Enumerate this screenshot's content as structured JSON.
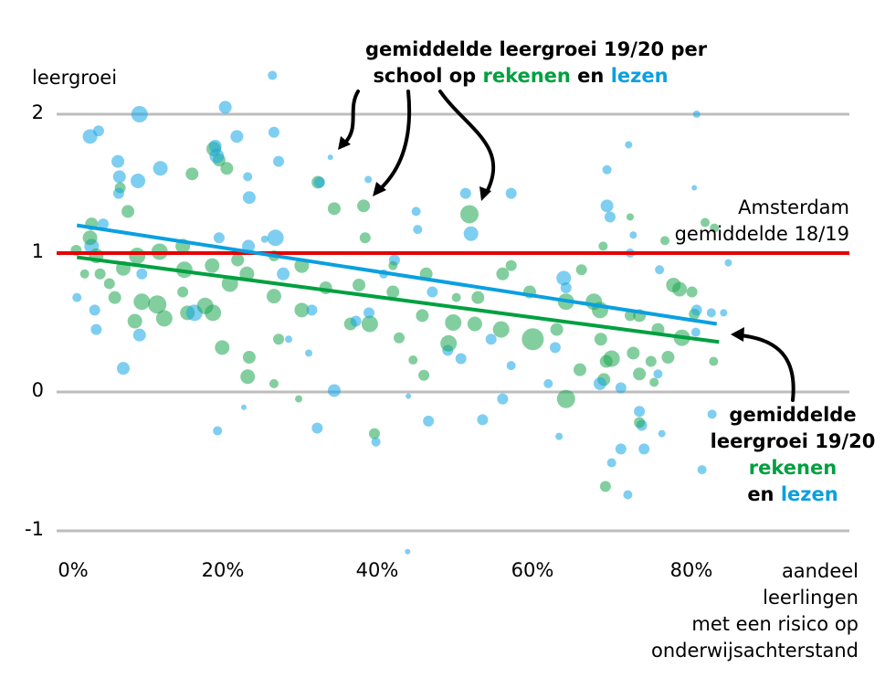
{
  "chart_data": {
    "type": "scatter",
    "ylabel": "leergroei",
    "xlabel": [
      "aandeel",
      "leerlingen",
      "met een risico op",
      "onderwijsachterstand"
    ],
    "xlim": [
      -2,
      101
    ],
    "ylim": [
      -1.2,
      2.3
    ],
    "x_ticks": [
      0,
      20,
      40,
      60,
      80
    ],
    "x_tick_labels": [
      "0%",
      "20%",
      "40%",
      "60%",
      "80%"
    ],
    "y_ticks": [
      2,
      1,
      0,
      -1
    ],
    "y_tick_labels": [
      "2",
      "1",
      "0",
      "-1"
    ],
    "grid": "horizontal",
    "colors": {
      "rekenen": "#00a040",
      "lezen": "#0aa0e0",
      "reference": "#e60000",
      "grid": "#bdbdbd"
    },
    "reference_line": {
      "y": 1,
      "label": [
        "Amsterdam",
        "gemiddelde 18/19"
      ]
    },
    "trend_lines": {
      "lezen": [
        [
          0.5,
          1.2
        ],
        [
          83.3,
          0.49
        ]
      ],
      "rekenen": [
        [
          0.5,
          0.97
        ],
        [
          83.6,
          0.36
        ]
      ]
    },
    "annotations": {
      "top": {
        "line1": "gemiddelde leergroei 19/20 per",
        "line2a": "school op ",
        "line2b": "rekenen",
        "line2c": " en ",
        "line2d": "lezen"
      },
      "right": {
        "line1": "gemiddelde",
        "line2": "leergroei 19/20",
        "line3": "rekenen",
        "line4a": "en ",
        "line4b": "lezen"
      }
    },
    "series": [
      {
        "key": "lezen",
        "points": [
          [
            25.8,
            2.28,
            5
          ],
          [
            19.7,
            2.05,
            7
          ],
          [
            8.6,
            2.0,
            9
          ],
          [
            2.2,
            1.84,
            8
          ],
          [
            3.3,
            1.88,
            6
          ],
          [
            21.2,
            1.84,
            7
          ],
          [
            26.0,
            1.87,
            6
          ],
          [
            33.3,
            1.69,
            3
          ],
          [
            71.9,
            1.78,
            4
          ],
          [
            80.7,
            2.0,
            4
          ],
          [
            5.8,
            1.66,
            7
          ],
          [
            6.0,
            1.55,
            7
          ],
          [
            5.9,
            1.43,
            6
          ],
          [
            8.4,
            1.52,
            8
          ],
          [
            11.3,
            1.61,
            8
          ],
          [
            18.6,
            1.7,
            8
          ],
          [
            18.4,
            1.77,
            7
          ],
          [
            22.6,
            1.55,
            5
          ],
          [
            22.8,
            1.4,
            7
          ],
          [
            26.6,
            1.66,
            6
          ],
          [
            31.9,
            1.51,
            6
          ],
          [
            38.2,
            1.53,
            4
          ],
          [
            44.4,
            1.3,
            5
          ],
          [
            44.6,
            1.17,
            5
          ],
          [
            50.8,
            1.43,
            6
          ],
          [
            51.5,
            1.14,
            8
          ],
          [
            56.7,
            1.43,
            6
          ],
          [
            69.1,
            1.6,
            5
          ],
          [
            69.5,
            1.26,
            6
          ],
          [
            69.1,
            1.34,
            7
          ],
          [
            72.5,
            1.13,
            4
          ],
          [
            80.4,
            1.47,
            3
          ],
          [
            2.4,
            1.05,
            8
          ],
          [
            3.9,
            1.21,
            6
          ],
          [
            0.5,
            0.68,
            5
          ],
          [
            3.0,
            0.45,
            6
          ],
          [
            2.8,
            0.59,
            6
          ],
          [
            6.5,
            0.17,
            7
          ],
          [
            8.6,
            0.41,
            7
          ],
          [
            8.9,
            0.85,
            6
          ],
          [
            15.7,
            0.57,
            9
          ],
          [
            18.9,
            1.11,
            6
          ],
          [
            22.7,
            1.05,
            7
          ],
          [
            24.8,
            1.1,
            4
          ],
          [
            26.2,
            1.11,
            9
          ],
          [
            27.2,
            0.85,
            7
          ],
          [
            30.9,
            0.59,
            6
          ],
          [
            30.5,
            0.28,
            4
          ],
          [
            38.3,
            0.57,
            6
          ],
          [
            40.2,
            0.85,
            5
          ],
          [
            41.6,
            0.95,
            6
          ],
          [
            46.5,
            0.72,
            6
          ],
          [
            48.5,
            0.3,
            6
          ],
          [
            50.2,
            0.24,
            6
          ],
          [
            54.1,
            0.38,
            6
          ],
          [
            63.5,
            0.82,
            8
          ],
          [
            62.4,
            0.32,
            6
          ],
          [
            63.8,
            0.75,
            6
          ],
          [
            70.9,
            0.03,
            6
          ],
          [
            68.2,
            0.06,
            7
          ],
          [
            73.3,
            -0.14,
            6
          ],
          [
            73.6,
            -0.24,
            6
          ],
          [
            69.7,
            -0.51,
            5
          ],
          [
            73.9,
            -0.41,
            6
          ],
          [
            71.8,
            -0.74,
            5
          ],
          [
            80.7,
            0.59,
            6
          ],
          [
            82.6,
            0.57,
            5
          ],
          [
            84.2,
            0.57,
            4
          ],
          [
            82.7,
            -0.16,
            5
          ],
          [
            81.4,
            -0.56,
            5
          ],
          [
            80.6,
            0.43,
            5
          ],
          [
            33.8,
            0.01,
            7
          ],
          [
            31.6,
            -0.26,
            6
          ],
          [
            39.2,
            -0.36,
            5
          ],
          [
            46.0,
            -0.21,
            6
          ],
          [
            53.0,
            -0.2,
            6
          ],
          [
            62.9,
            -0.32,
            4
          ],
          [
            70.9,
            -0.41,
            6
          ],
          [
            76.2,
            -0.3,
            4
          ],
          [
            43.4,
            -0.03,
            3
          ],
          [
            43.3,
            -1.15,
            3
          ],
          [
            18.7,
            -0.28,
            5
          ],
          [
            22.1,
            -0.11,
            3
          ],
          [
            27.9,
            0.38,
            4
          ],
          [
            36.6,
            0.51,
            6
          ],
          [
            56.7,
            0.19,
            5
          ],
          [
            61.5,
            0.06,
            5
          ],
          [
            55.6,
            -0.05,
            6
          ],
          [
            75.7,
            0.13,
            5
          ],
          [
            75.9,
            0.88,
            5
          ],
          [
            84.8,
            0.93,
            4
          ],
          [
            72.1,
            1.0,
            5
          ]
        ]
      },
      {
        "key": "rekenen",
        "points": [
          [
            31.7,
            1.51,
            7
          ],
          [
            37.6,
            1.34,
            7
          ],
          [
            33.8,
            1.32,
            7
          ],
          [
            51.3,
            1.28,
            10
          ],
          [
            19.9,
            1.61,
            7
          ],
          [
            18.9,
            1.67,
            7
          ],
          [
            18.2,
            1.75,
            8
          ],
          [
            15.4,
            1.57,
            7
          ],
          [
            6.1,
            1.47,
            6
          ],
          [
            7.1,
            1.3,
            7
          ],
          [
            2.4,
            1.21,
            7
          ],
          [
            2.2,
            1.11,
            8
          ],
          [
            3.0,
            0.98,
            8
          ],
          [
            3.5,
            0.85,
            6
          ],
          [
            6.5,
            0.89,
            8
          ],
          [
            8.3,
            0.98,
            9
          ],
          [
            11.2,
            1.01,
            9
          ],
          [
            14.2,
            1.05,
            8
          ],
          [
            14.4,
            0.88,
            9
          ],
          [
            18.0,
            0.91,
            8
          ],
          [
            21.3,
            0.95,
            7
          ],
          [
            22.5,
            0.85,
            8
          ],
          [
            26.0,
            0.98,
            6
          ],
          [
            29.6,
            0.91,
            8
          ],
          [
            32.7,
            0.75,
            7
          ],
          [
            37.0,
            0.77,
            7
          ],
          [
            41.4,
            0.72,
            7
          ],
          [
            45.7,
            0.85,
            7
          ],
          [
            55.6,
            0.85,
            7
          ],
          [
            59.1,
            0.72,
            7
          ],
          [
            63.8,
            0.65,
            9
          ],
          [
            67.4,
            0.65,
            9
          ],
          [
            68.2,
            0.59,
            9
          ],
          [
            73.3,
            0.55,
            7
          ],
          [
            75.7,
            0.45,
            7
          ],
          [
            78.8,
            0.39,
            9
          ],
          [
            80.1,
            0.72,
            6
          ],
          [
            80.4,
            0.56,
            6
          ],
          [
            77.7,
            0.77,
            8
          ],
          [
            76.6,
            1.09,
            5
          ],
          [
            72.1,
            1.26,
            4
          ],
          [
            68.6,
            1.05,
            5
          ],
          [
            65.8,
            0.88,
            6
          ],
          [
            5.4,
            0.68,
            7
          ],
          [
            8.9,
            0.65,
            9
          ],
          [
            11.8,
            0.53,
            9
          ],
          [
            10.9,
            0.63,
            10
          ],
          [
            14.8,
            0.57,
            8
          ],
          [
            17.1,
            0.62,
            9
          ],
          [
            20.3,
            0.78,
            9
          ],
          [
            18.1,
            0.57,
            9
          ],
          [
            26.0,
            0.69,
            8
          ],
          [
            29.6,
            0.59,
            8
          ],
          [
            35.9,
            0.49,
            7
          ],
          [
            38.4,
            0.49,
            9
          ],
          [
            42.2,
            0.39,
            6
          ],
          [
            45.2,
            0.55,
            7
          ],
          [
            52.0,
            0.49,
            8
          ],
          [
            55.4,
            0.45,
            9
          ],
          [
            59.5,
            0.38,
            12
          ],
          [
            62.6,
            0.45,
            7
          ],
          [
            68.3,
            0.38,
            7
          ],
          [
            69.7,
            0.24,
            9
          ],
          [
            69.0,
            0.22,
            7
          ],
          [
            68.7,
            0.09,
            7
          ],
          [
            72.5,
            0.28,
            7
          ],
          [
            74.8,
            0.22,
            6
          ],
          [
            75.2,
            0.07,
            5
          ],
          [
            77.0,
            0.25,
            7
          ],
          [
            72.1,
            0.55,
            6
          ],
          [
            63.8,
            -0.05,
            10
          ],
          [
            65.6,
            0.16,
            7
          ],
          [
            49.2,
            0.5,
            9
          ],
          [
            48.6,
            0.35,
            9
          ],
          [
            45.4,
            0.12,
            6
          ],
          [
            52.4,
            0.68,
            7
          ],
          [
            44.0,
            0.23,
            5
          ],
          [
            26.6,
            0.38,
            6
          ],
          [
            22.8,
            0.25,
            7
          ],
          [
            22.6,
            0.11,
            8
          ],
          [
            19.3,
            0.32,
            8
          ],
          [
            8.0,
            0.51,
            8
          ],
          [
            1.5,
            0.85,
            5
          ],
          [
            0.4,
            1.02,
            6
          ],
          [
            26.0,
            0.06,
            5
          ],
          [
            29.2,
            -0.05,
            4
          ],
          [
            39.0,
            -0.3,
            6
          ],
          [
            73.3,
            -0.22,
            6
          ],
          [
            68.9,
            -0.68,
            6
          ],
          [
            82.9,
            0.22,
            5
          ],
          [
            81.8,
            1.22,
            5
          ],
          [
            83.0,
            1.18,
            5
          ],
          [
            73.3,
            0.13,
            7
          ],
          [
            78.5,
            0.74,
            8
          ],
          [
            14.2,
            0.72,
            6
          ],
          [
            4.7,
            0.78,
            6
          ],
          [
            56.7,
            0.91,
            6
          ],
          [
            37.8,
            1.11,
            6
          ],
          [
            41.4,
            0.91,
            5
          ],
          [
            49.6,
            0.68,
            5
          ]
        ]
      }
    ]
  }
}
